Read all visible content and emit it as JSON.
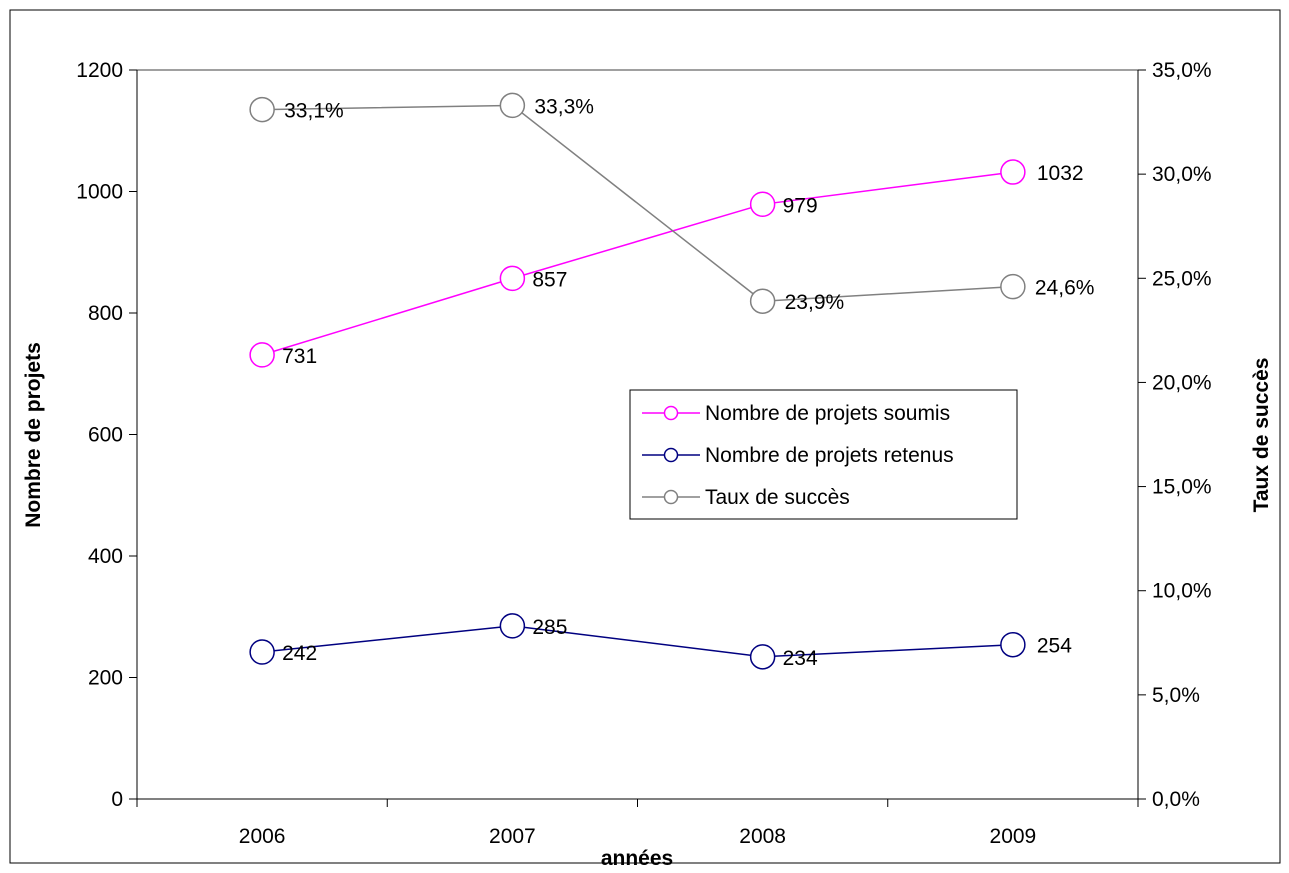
{
  "chart_data": {
    "type": "line",
    "title": "",
    "xlabel": "années",
    "ylabel_left": "Nombre de projets",
    "ylabel_right": "Taux de succès",
    "categories": [
      "2006",
      "2007",
      "2008",
      "2009"
    ],
    "ylim_left": [
      0,
      1200
    ],
    "yticks_left": [
      "0",
      "200",
      "400",
      "600",
      "800",
      "1000",
      "1200"
    ],
    "ylim_right": [
      0,
      35
    ],
    "yticks_right": [
      "0,0%",
      "5,0%",
      "10,0%",
      "15,0%",
      "20,0%",
      "25,0%",
      "30,0%",
      "35,0%"
    ],
    "grid": false,
    "legend_position": "center-right",
    "series": [
      {
        "name": "Nombre de projets soumis",
        "axis": "left",
        "color": "#ff00ff",
        "values": [
          731,
          857,
          979,
          1032
        ],
        "labels": [
          "731",
          "857",
          "979",
          "1032"
        ]
      },
      {
        "name": "Nombre de projets retenus",
        "axis": "left",
        "color": "#000080",
        "values": [
          242,
          285,
          234,
          254
        ],
        "labels": [
          "242",
          "285",
          "234",
          "254"
        ]
      },
      {
        "name": "Taux de succès",
        "axis": "right",
        "color": "#808080",
        "values": [
          33.1,
          33.3,
          23.9,
          24.6
        ],
        "labels": [
          "33,1%",
          "33,3%",
          "23,9%",
          "24,6%"
        ]
      }
    ]
  }
}
